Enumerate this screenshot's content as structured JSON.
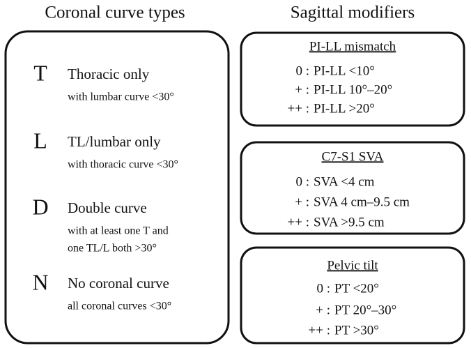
{
  "coronal": {
    "title": "Coronal curve types",
    "types": [
      {
        "letter": "T",
        "name": "Thoracic only",
        "detail": [
          "with lumbar curve <30°"
        ]
      },
      {
        "letter": "L",
        "name": "TL/lumbar only",
        "detail": [
          "with thoracic curve <30°"
        ]
      },
      {
        "letter": "D",
        "name": "Double curve",
        "detail": [
          "with at least one T and",
          "one TL/L both >30°"
        ]
      },
      {
        "letter": "N",
        "name": "No coronal curve",
        "detail": [
          "all coronal curves <30°"
        ]
      }
    ]
  },
  "sagittal": {
    "title": "Sagittal modifiers",
    "modifiers": [
      {
        "title": "PI-LL mismatch",
        "rows": [
          [
            "0 :",
            "PI-LL <10°"
          ],
          [
            "+ :",
            "PI-LL 10°–20°"
          ],
          [
            "++ :",
            "PI-LL >20°"
          ]
        ]
      },
      {
        "title": "C7-S1 SVA",
        "rows": [
          [
            "0 :",
            "SVA <4 cm"
          ],
          [
            "+ :",
            "SVA 4 cm–9.5 cm"
          ],
          [
            "++ :",
            "SVA >9.5 cm"
          ]
        ]
      },
      {
        "title": "Pelvic tilt",
        "rows": [
          [
            "0 :",
            "PT <20°"
          ],
          [
            "+ :",
            "PT 20°–30°"
          ],
          [
            "++ :",
            "PT >30°"
          ]
        ]
      }
    ]
  }
}
